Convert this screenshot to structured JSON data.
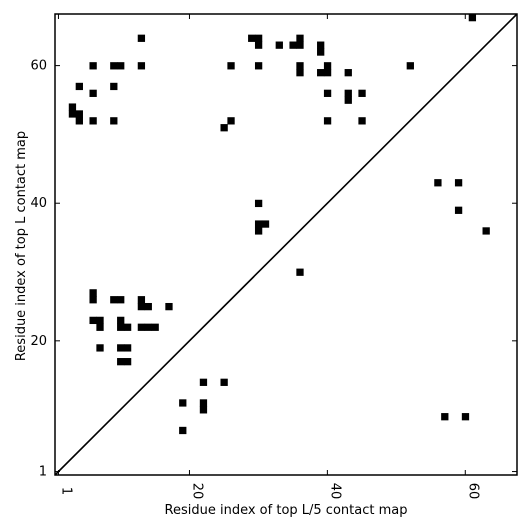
{
  "chart_data": {
    "type": "heatmap",
    "xlabel": "Residue index of top L/5 contact map",
    "ylabel": "Residue index of top L contact map",
    "xlim": [
      0.5,
      67.5
    ],
    "ylim": [
      0.5,
      67.5
    ],
    "x_ticks": [
      1,
      20,
      40,
      60
    ],
    "x_tick_labels": [
      "1",
      "20",
      "40",
      "60"
    ],
    "y_ticks": [
      1,
      20,
      40,
      60
    ],
    "y_tick_labels": [
      "1",
      "20",
      "40",
      "60"
    ],
    "grid": false,
    "diagonal": true,
    "cell_color": "#000000",
    "upper_contacts": [
      [
        13,
        64
      ],
      [
        29,
        64
      ],
      [
        30,
        64
      ],
      [
        36,
        64
      ],
      [
        30,
        63
      ],
      [
        33,
        63
      ],
      [
        35,
        63
      ],
      [
        36,
        63
      ],
      [
        39,
        63
      ],
      [
        61,
        67
      ],
      [
        39,
        62
      ],
      [
        6,
        60
      ],
      [
        9,
        60
      ],
      [
        10,
        60
      ],
      [
        13,
        60
      ],
      [
        26,
        60
      ],
      [
        30,
        60
      ],
      [
        36,
        60
      ],
      [
        40,
        60
      ],
      [
        52,
        60
      ],
      [
        36,
        59
      ],
      [
        39,
        59
      ],
      [
        40,
        59
      ],
      [
        43,
        59
      ],
      [
        4,
        57
      ],
      [
        9,
        57
      ],
      [
        6,
        56
      ],
      [
        40,
        56
      ],
      [
        43,
        56
      ],
      [
        45,
        56
      ],
      [
        43,
        55
      ],
      [
        3,
        54
      ],
      [
        3,
        53
      ],
      [
        4,
        53
      ],
      [
        4,
        52
      ],
      [
        6,
        52
      ],
      [
        9,
        52
      ],
      [
        26,
        52
      ],
      [
        40,
        52
      ],
      [
        45,
        52
      ],
      [
        25,
        51
      ],
      [
        56,
        43
      ],
      [
        59,
        43
      ],
      [
        30,
        40
      ],
      [
        59,
        39
      ],
      [
        30,
        37
      ],
      [
        31,
        37
      ],
      [
        30,
        36
      ],
      [
        63,
        36
      ],
      [
        36,
        30
      ]
    ],
    "lower_contacts": [
      [
        6,
        27
      ],
      [
        6,
        26
      ],
      [
        9,
        26
      ],
      [
        10,
        26
      ],
      [
        13,
        26
      ],
      [
        13,
        25
      ],
      [
        14,
        25
      ],
      [
        17,
        25
      ],
      [
        6,
        23
      ],
      [
        7,
        23
      ],
      [
        10,
        23
      ],
      [
        7,
        22
      ],
      [
        10,
        22
      ],
      [
        11,
        22
      ],
      [
        13,
        22
      ],
      [
        14,
        22
      ],
      [
        15,
        22
      ],
      [
        7,
        19
      ],
      [
        10,
        19
      ],
      [
        11,
        19
      ],
      [
        10,
        17
      ],
      [
        11,
        17
      ],
      [
        22,
        14
      ],
      [
        25,
        14
      ],
      [
        19,
        11
      ],
      [
        22,
        11
      ],
      [
        22,
        10
      ],
      [
        57,
        9
      ],
      [
        60,
        9
      ],
      [
        19,
        7
      ]
    ]
  }
}
